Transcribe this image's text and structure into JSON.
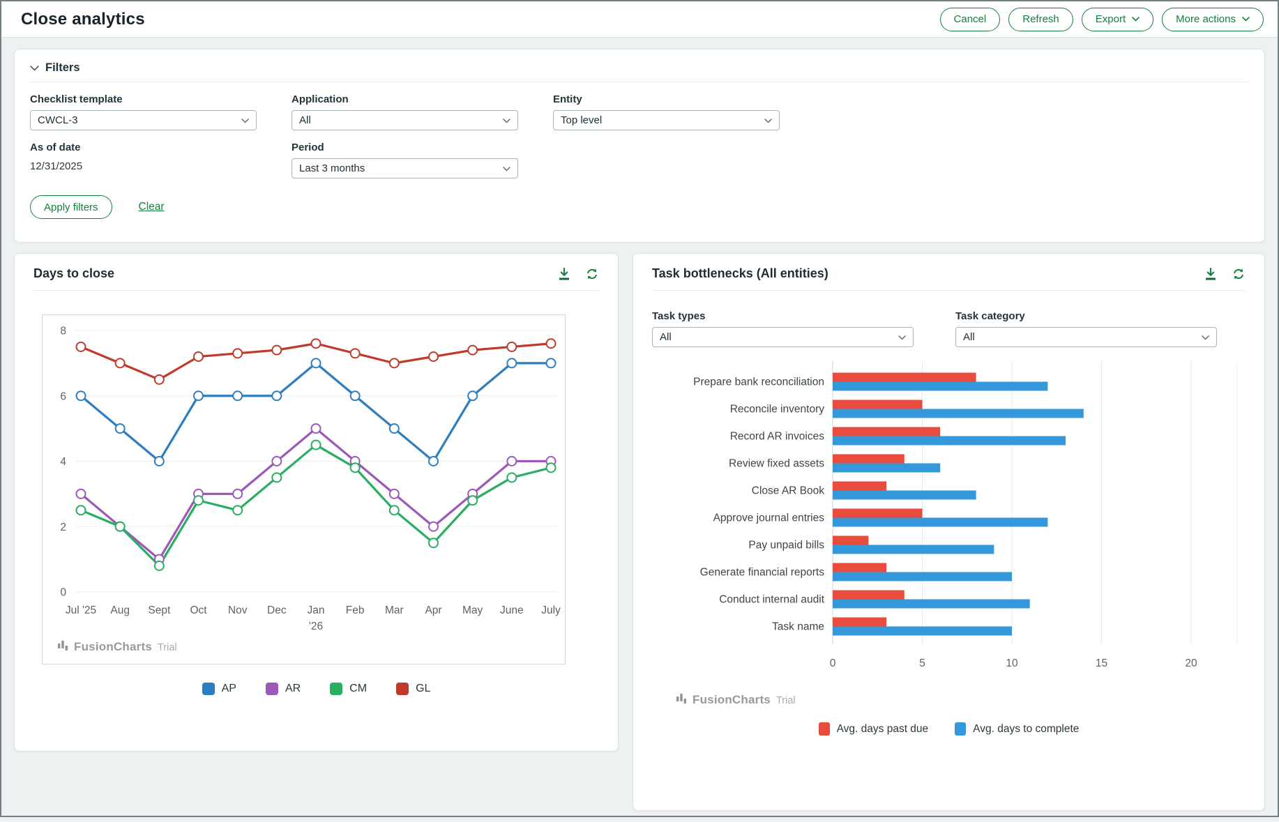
{
  "theme": {
    "accent_green": "#15803d",
    "icon_green": "#1b7f42",
    "page_background": "#edf1f1"
  },
  "header": {
    "title": "Close analytics",
    "buttons": [
      {
        "label": "Cancel"
      },
      {
        "label": "Refresh"
      },
      {
        "label": "Export"
      },
      {
        "label": "More actions"
      }
    ]
  },
  "filters": {
    "title": "Filters",
    "checklist_template": {
      "label": "Checklist template",
      "value": "CWCL-3"
    },
    "application": {
      "label": "Application",
      "value": "All"
    },
    "entity": {
      "label": "Entity",
      "value": "Top level"
    },
    "as_of_date": {
      "label": "As of date",
      "value": "12/31/2025"
    },
    "period": {
      "label": "Period",
      "value": "Last 3 months"
    },
    "apply_label": "Apply filters",
    "clear_label": "Clear"
  },
  "days_to_close": {
    "title": "Days to close",
    "watermark_brand": "FusionCharts",
    "watermark_suffix": "Trial"
  },
  "task_bottlenecks": {
    "title": "Task bottlenecks (All entities)",
    "task_types": {
      "label": "Task types",
      "value": "All"
    },
    "task_category": {
      "label": "Task category",
      "value": "All"
    },
    "watermark_brand": "FusionCharts",
    "watermark_suffix": "Trial"
  },
  "chart_data": [
    {
      "id": "days_to_close",
      "type": "line",
      "title": "Days to close",
      "categories": [
        "Jul '25",
        "Aug",
        "Sept",
        "Oct",
        "Nov",
        "Dec",
        "Jan '26",
        "Feb",
        "Mar",
        "Apr",
        "May",
        "June",
        "July"
      ],
      "categories_lines": [
        [
          "Jul '25"
        ],
        [
          "Aug"
        ],
        [
          "Sept"
        ],
        [
          "Oct"
        ],
        [
          "Nov"
        ],
        [
          "Dec"
        ],
        [
          "Jan",
          "'26"
        ],
        [
          "Feb"
        ],
        [
          "Mar"
        ],
        [
          "Apr"
        ],
        [
          "May"
        ],
        [
          "June"
        ],
        [
          "July"
        ]
      ],
      "series": [
        {
          "name": "AP",
          "color": "#2e7dbe",
          "values": [
            6,
            5,
            4,
            6,
            6,
            6,
            7,
            6,
            5,
            4,
            6,
            7,
            7
          ]
        },
        {
          "name": "AR",
          "color": "#9c59b8",
          "values": [
            3,
            2,
            1,
            3,
            3,
            4,
            5,
            4,
            3,
            2,
            3,
            4,
            4
          ]
        },
        {
          "name": "CM",
          "color": "#27ae60",
          "values": [
            2.5,
            2,
            0.8,
            2.8,
            2.5,
            3.5,
            4.5,
            3.8,
            2.5,
            1.5,
            2.8,
            3.5,
            3.8
          ]
        },
        {
          "name": "GL",
          "color": "#c0392b",
          "values": [
            7.5,
            7,
            6.5,
            7.2,
            7.3,
            7.4,
            7.6,
            7.3,
            7,
            7.2,
            7.4,
            7.5,
            7.6
          ]
        }
      ],
      "ylim": [
        0,
        8
      ],
      "ytick_step": 2,
      "grid": true,
      "legend_position": "bottom"
    },
    {
      "id": "task_bottlenecks",
      "type": "bar",
      "orientation": "horizontal",
      "categories": [
        "Prepare bank reconciliation",
        "Reconcile inventory",
        "Record AR invoices",
        "Review fixed assets",
        "Close AR Book",
        "Approve journal entries",
        "Pay unpaid bills",
        "Generate financial reports",
        "Conduct internal audit",
        "Task name"
      ],
      "series": [
        {
          "name": "Avg. days past due",
          "color": "#e74c3c",
          "values": [
            8,
            5,
            6,
            4,
            3,
            5,
            2,
            3,
            4,
            3
          ]
        },
        {
          "name": "Avg. days to complete",
          "color": "#3498db",
          "values": [
            12,
            14,
            13,
            6,
            8,
            12,
            9,
            10,
            11,
            10
          ]
        }
      ],
      "xlim": [
        0,
        20
      ],
      "xticks": [
        0,
        5,
        10,
        15,
        20
      ],
      "grid": true,
      "legend_position": "bottom"
    }
  ]
}
